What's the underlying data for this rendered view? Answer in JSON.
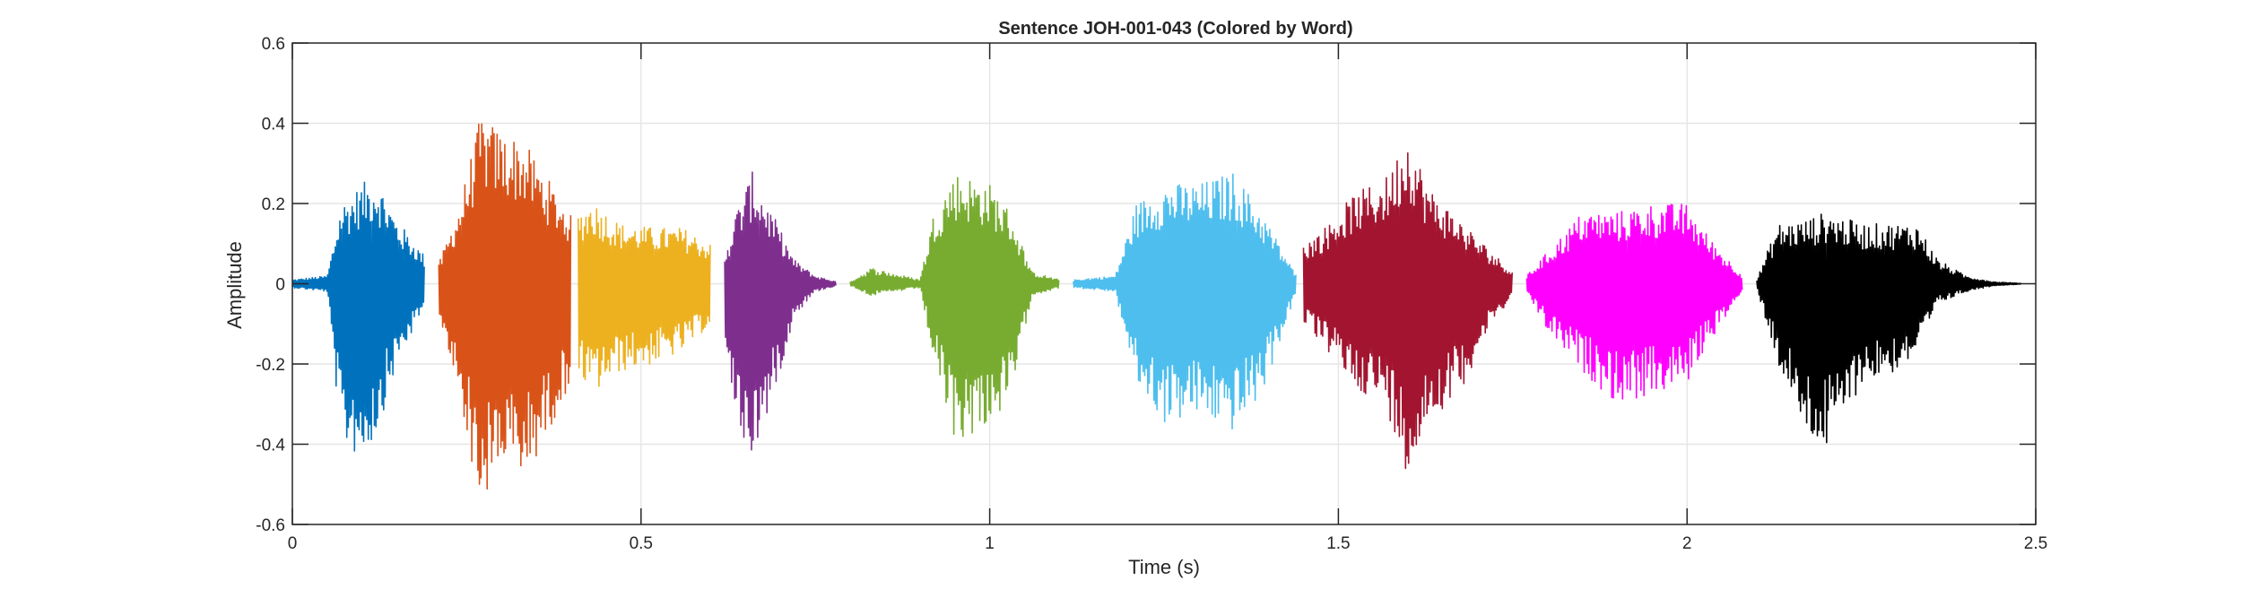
{
  "chart_data": {
    "type": "line",
    "title": "Sentence JOH-001-043 (Colored by Word)",
    "xlabel": "Time (s)",
    "ylabel": "Amplitude",
    "xlim": [
      0,
      2.5
    ],
    "ylim": [
      -0.6,
      0.6
    ],
    "x_ticks": [
      0,
      0.5,
      1,
      1.5,
      2,
      2.5
    ],
    "x_tick_labels": [
      "0",
      "0.5",
      "1",
      "1.5",
      "2",
      "2.5"
    ],
    "y_ticks": [
      0.6,
      0.4,
      0.2,
      0,
      -0.2,
      -0.4,
      -0.6
    ],
    "y_tick_labels": [
      "0.6",
      "0.4",
      "0.2",
      "0",
      "-0.2",
      "-0.4",
      "-0.6"
    ],
    "grid": true,
    "series": [
      {
        "color": "#0072BD",
        "x_start": 0.0,
        "x_end": 0.19,
        "envelope": {
          "x": [
            0.0,
            0.05,
            0.07,
            0.1,
            0.12,
            0.15,
            0.19
          ],
          "upper": [
            0.01,
            0.02,
            0.2,
            0.25,
            0.27,
            0.16,
            0.07
          ],
          "lower": [
            -0.01,
            -0.02,
            -0.4,
            -0.44,
            -0.38,
            -0.2,
            -0.06
          ]
        }
      },
      {
        "color": "#D95319",
        "x_start": 0.21,
        "x_end": 0.4,
        "envelope": {
          "x": [
            0.21,
            0.24,
            0.27,
            0.3,
            0.33,
            0.36,
            0.4
          ],
          "upper": [
            0.05,
            0.2,
            0.42,
            0.38,
            0.36,
            0.28,
            0.17
          ],
          "lower": [
            -0.1,
            -0.28,
            -0.57,
            -0.45,
            -0.5,
            -0.4,
            -0.24
          ]
        }
      },
      {
        "color": "#EDB120",
        "x_start": 0.41,
        "x_end": 0.6,
        "envelope": {
          "x": [
            0.41,
            0.43,
            0.47,
            0.52,
            0.56,
            0.6
          ],
          "upper": [
            0.18,
            0.21,
            0.15,
            0.14,
            0.14,
            0.1
          ],
          "lower": [
            -0.23,
            -0.28,
            -0.22,
            -0.2,
            -0.17,
            -0.1
          ]
        }
      },
      {
        "color": "#7E2F8E",
        "x_start": 0.62,
        "x_end": 0.78,
        "envelope": {
          "x": [
            0.62,
            0.64,
            0.66,
            0.69,
            0.72,
            0.75,
            0.78
          ],
          "upper": [
            0.08,
            0.2,
            0.28,
            0.17,
            0.06,
            0.02,
            0.005
          ],
          "lower": [
            -0.15,
            -0.38,
            -0.44,
            -0.28,
            -0.08,
            -0.02,
            -0.005
          ]
        }
      },
      {
        "color": "#77AC30",
        "x_start": 0.8,
        "x_end": 1.1,
        "envelope": {
          "x": [
            0.8,
            0.83,
            0.9,
            0.92,
            0.95,
            1.0,
            1.03,
            1.06,
            1.1
          ],
          "upper": [
            0.005,
            0.04,
            0.01,
            0.18,
            0.28,
            0.25,
            0.18,
            0.03,
            0.01
          ],
          "lower": [
            -0.005,
            -0.03,
            -0.01,
            -0.2,
            -0.4,
            -0.35,
            -0.3,
            -0.03,
            -0.01
          ]
        }
      },
      {
        "color": "#4DBEEE",
        "x_start": 1.12,
        "x_end": 1.44,
        "envelope": {
          "x": [
            1.12,
            1.18,
            1.21,
            1.25,
            1.3,
            1.35,
            1.39,
            1.44
          ],
          "upper": [
            0.01,
            0.02,
            0.2,
            0.25,
            0.25,
            0.28,
            0.18,
            0.02
          ],
          "lower": [
            -0.01,
            -0.02,
            -0.25,
            -0.35,
            -0.33,
            -0.37,
            -0.28,
            -0.02
          ]
        }
      },
      {
        "color": "#A2142F",
        "x_start": 1.45,
        "x_end": 1.75,
        "envelope": {
          "x": [
            1.45,
            1.48,
            1.52,
            1.57,
            1.6,
            1.63,
            1.68,
            1.72,
            1.75
          ],
          "upper": [
            0.1,
            0.14,
            0.22,
            0.27,
            0.38,
            0.24,
            0.15,
            0.08,
            0.03
          ],
          "lower": [
            -0.1,
            -0.16,
            -0.25,
            -0.32,
            -0.48,
            -0.35,
            -0.25,
            -0.1,
            -0.03
          ]
        }
      },
      {
        "color": "#FF00FF",
        "x_start": 1.77,
        "x_end": 2.08,
        "envelope": {
          "x": [
            1.77,
            1.8,
            1.85,
            1.9,
            1.95,
            2.0,
            2.03,
            2.08
          ],
          "upper": [
            0.02,
            0.08,
            0.18,
            0.18,
            0.2,
            0.2,
            0.12,
            0.02
          ],
          "lower": [
            -0.02,
            -0.12,
            -0.22,
            -0.3,
            -0.28,
            -0.25,
            -0.15,
            -0.02
          ]
        }
      },
      {
        "color": "#000000",
        "x_start": 2.1,
        "x_end": 2.48,
        "envelope": {
          "x": [
            2.1,
            2.13,
            2.17,
            2.2,
            2.25,
            2.3,
            2.33,
            2.36,
            2.4,
            2.44,
            2.48
          ],
          "upper": [
            0.01,
            0.15,
            0.16,
            0.18,
            0.15,
            0.15,
            0.15,
            0.06,
            0.02,
            0.005,
            0.001
          ],
          "lower": [
            -0.01,
            -0.2,
            -0.38,
            -0.42,
            -0.25,
            -0.22,
            -0.18,
            -0.05,
            -0.02,
            -0.005,
            -0.001
          ]
        }
      }
    ]
  }
}
